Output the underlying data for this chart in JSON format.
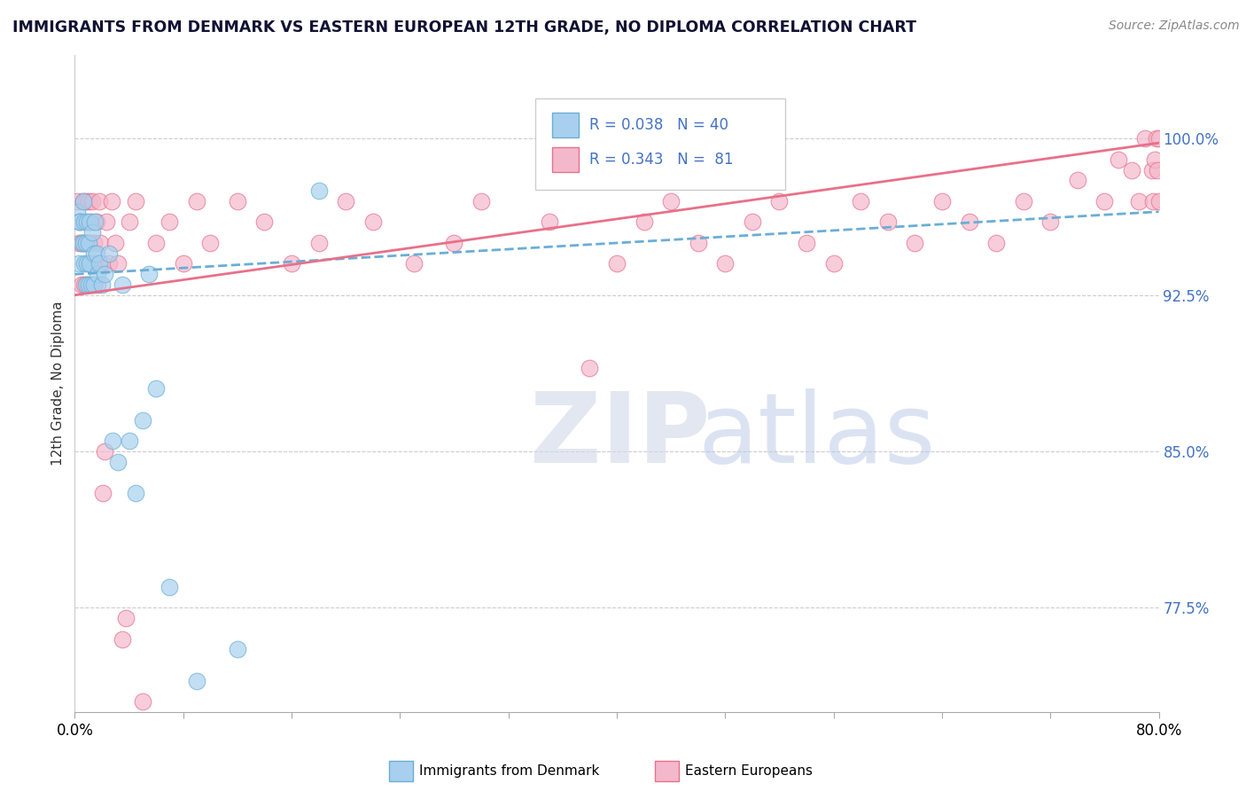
{
  "title": "IMMIGRANTS FROM DENMARK VS EASTERN EUROPEAN 12TH GRADE, NO DIPLOMA CORRELATION CHART",
  "source": "Source: ZipAtlas.com",
  "ylabel": "12th Grade, No Diploma",
  "ytick_labels": [
    "100.0%",
    "92.5%",
    "85.0%",
    "77.5%"
  ],
  "ytick_values": [
    1.0,
    0.925,
    0.85,
    0.775
  ],
  "xlim": [
    0.0,
    0.8
  ],
  "ylim": [
    0.725,
    1.04
  ],
  "xtick_positions": [
    0.0,
    0.08,
    0.16,
    0.24,
    0.32,
    0.4,
    0.48,
    0.56,
    0.64,
    0.72,
    0.8
  ],
  "xtick_labels": [
    "0.0%",
    "",
    "",
    "",
    "",
    "",
    "",
    "",
    "",
    "",
    "80.0%"
  ],
  "legend_line1": "R = 0.038   N = 40",
  "legend_line2": "R = 0.343   N =  81",
  "color_denmark": "#A8D0EE",
  "color_eastern": "#F4B8CC",
  "color_line_denmark": "#6AAED6",
  "color_line_eastern": "#E8708A",
  "watermark_zip": "ZIP",
  "watermark_atlas": "atlas",
  "denmark_x": [
    0.002,
    0.003,
    0.003,
    0.004,
    0.005,
    0.006,
    0.006,
    0.007,
    0.007,
    0.008,
    0.008,
    0.009,
    0.009,
    0.01,
    0.01,
    0.011,
    0.011,
    0.012,
    0.013,
    0.014,
    0.014,
    0.015,
    0.016,
    0.017,
    0.018,
    0.02,
    0.022,
    0.025,
    0.028,
    0.032,
    0.035,
    0.04,
    0.045,
    0.05,
    0.055,
    0.06,
    0.07,
    0.09,
    0.12,
    0.18
  ],
  "denmark_y": [
    0.965,
    0.96,
    0.94,
    0.96,
    0.95,
    0.97,
    0.95,
    0.96,
    0.94,
    0.95,
    0.93,
    0.96,
    0.94,
    0.95,
    0.93,
    0.96,
    0.94,
    0.93,
    0.955,
    0.945,
    0.93,
    0.96,
    0.945,
    0.935,
    0.94,
    0.93,
    0.935,
    0.945,
    0.855,
    0.845,
    0.93,
    0.855,
    0.83,
    0.865,
    0.935,
    0.88,
    0.785,
    0.74,
    0.755,
    0.975
  ],
  "eastern_x": [
    0.002,
    0.003,
    0.004,
    0.005,
    0.005,
    0.006,
    0.007,
    0.007,
    0.008,
    0.009,
    0.009,
    0.01,
    0.01,
    0.011,
    0.012,
    0.013,
    0.014,
    0.015,
    0.016,
    0.017,
    0.018,
    0.019,
    0.02,
    0.021,
    0.022,
    0.023,
    0.025,
    0.027,
    0.03,
    0.032,
    0.035,
    0.038,
    0.04,
    0.045,
    0.05,
    0.06,
    0.07,
    0.08,
    0.09,
    0.1,
    0.12,
    0.14,
    0.16,
    0.18,
    0.2,
    0.22,
    0.25,
    0.28,
    0.3,
    0.35,
    0.38,
    0.4,
    0.42,
    0.44,
    0.46,
    0.48,
    0.5,
    0.52,
    0.54,
    0.56,
    0.58,
    0.6,
    0.62,
    0.64,
    0.66,
    0.68,
    0.7,
    0.72,
    0.74,
    0.76,
    0.77,
    0.78,
    0.785,
    0.79,
    0.795,
    0.796,
    0.797,
    0.798,
    0.799,
    0.8,
    0.8
  ],
  "eastern_y": [
    0.97,
    0.95,
    0.96,
    0.95,
    0.93,
    0.97,
    0.95,
    0.93,
    0.97,
    0.95,
    0.93,
    0.97,
    0.95,
    0.94,
    0.96,
    0.97,
    0.95,
    0.94,
    0.96,
    0.93,
    0.97,
    0.95,
    0.94,
    0.83,
    0.85,
    0.96,
    0.94,
    0.97,
    0.95,
    0.94,
    0.76,
    0.77,
    0.96,
    0.97,
    0.73,
    0.95,
    0.96,
    0.94,
    0.97,
    0.95,
    0.97,
    0.96,
    0.94,
    0.95,
    0.97,
    0.96,
    0.94,
    0.95,
    0.97,
    0.96,
    0.89,
    0.94,
    0.96,
    0.97,
    0.95,
    0.94,
    0.96,
    0.97,
    0.95,
    0.94,
    0.97,
    0.96,
    0.95,
    0.97,
    0.96,
    0.95,
    0.97,
    0.96,
    0.98,
    0.97,
    0.99,
    0.985,
    0.97,
    1.0,
    0.985,
    0.97,
    0.99,
    1.0,
    0.985,
    0.97,
    1.0
  ],
  "trend_dk_x0": 0.0,
  "trend_dk_x1": 0.8,
  "trend_dk_y0": 0.935,
  "trend_dk_y1": 0.965,
  "trend_ee_x0": 0.0,
  "trend_ee_x1": 0.8,
  "trend_ee_y0": 0.925,
  "trend_ee_y1": 0.998
}
